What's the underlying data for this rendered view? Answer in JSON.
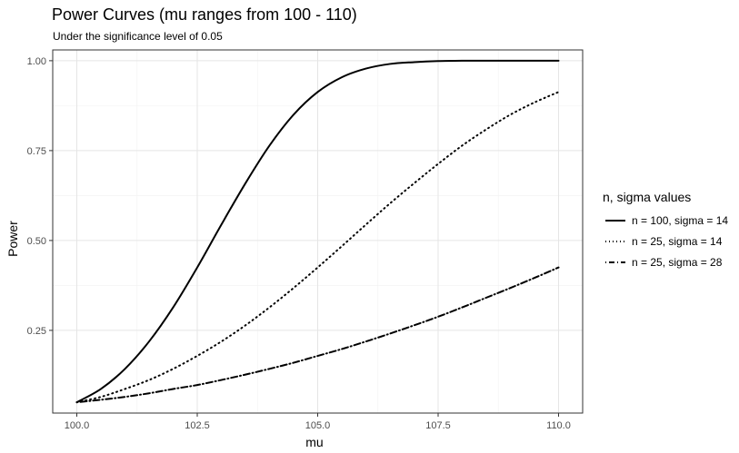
{
  "chart_data": {
    "type": "line",
    "title": "Power Curves (mu ranges from 100 - 110)",
    "subtitle": "Under the significance level of 0.05",
    "xlabel": "mu",
    "ylabel": "Power",
    "xlim": [
      99.5,
      110.5
    ],
    "ylim": [
      0.02,
      1.03
    ],
    "x_ticks": [
      100.0,
      102.5,
      105.0,
      107.5,
      110.0
    ],
    "x_tick_labels": [
      "100.0",
      "102.5",
      "105.0",
      "107.5",
      "110.0"
    ],
    "y_ticks": [
      0.25,
      0.5,
      0.75,
      1.0
    ],
    "y_tick_labels": [
      "0.25",
      "0.50",
      "0.75",
      "1.00"
    ],
    "grid": true,
    "legend_title": "n, sigma values",
    "legend_position": "right",
    "x": [
      100.0,
      100.5,
      101.0,
      101.5,
      102.0,
      102.5,
      103.0,
      103.5,
      104.0,
      104.5,
      105.0,
      105.5,
      106.0,
      106.5,
      107.0,
      107.5,
      108.0,
      108.5,
      109.0,
      109.5,
      110.0
    ],
    "series": [
      {
        "name": "n = 100, sigma = 14",
        "dash": "solid",
        "values": [
          0.05,
          0.087,
          0.143,
          0.219,
          0.314,
          0.425,
          0.544,
          0.659,
          0.764,
          0.85,
          0.913,
          0.954,
          0.978,
          0.991,
          0.996,
          0.999,
          1.0,
          1.0,
          1.0,
          1.0,
          1.0
        ]
      },
      {
        "name": "n = 25, sigma = 14",
        "dash": "dotted",
        "values": [
          0.05,
          0.065,
          0.087,
          0.112,
          0.143,
          0.179,
          0.219,
          0.264,
          0.314,
          0.368,
          0.425,
          0.484,
          0.544,
          0.603,
          0.659,
          0.713,
          0.764,
          0.809,
          0.85,
          0.884,
          0.913
        ]
      },
      {
        "name": "n = 25, sigma = 28",
        "dash": "dotdash",
        "values": [
          0.05,
          0.057,
          0.065,
          0.075,
          0.087,
          0.098,
          0.112,
          0.127,
          0.143,
          0.16,
          0.179,
          0.198,
          0.219,
          0.241,
          0.264,
          0.288,
          0.314,
          0.341,
          0.368,
          0.396,
          0.425
        ]
      }
    ]
  }
}
